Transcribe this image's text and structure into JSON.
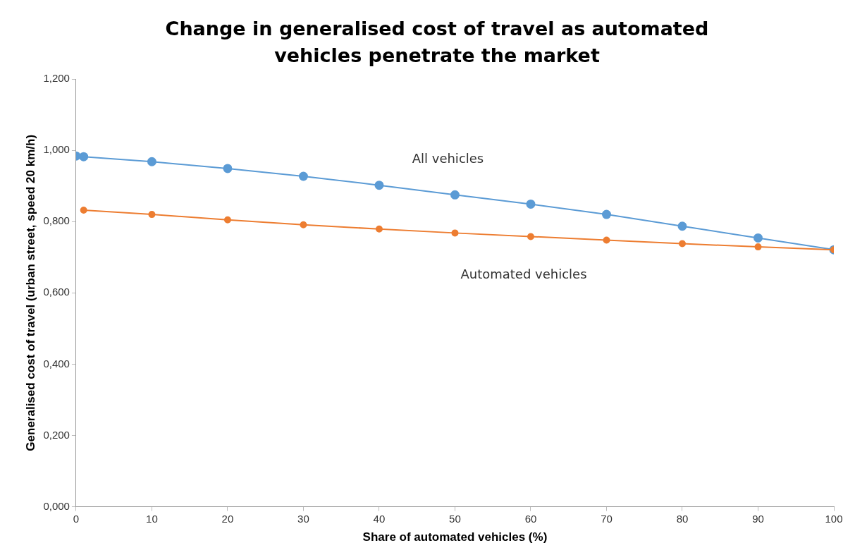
{
  "chart_data": {
    "type": "line",
    "title": "Change in generalised cost of travel as automated vehicles penetrate the market",
    "xlabel": "Share of automated vehicles (%)",
    "ylabel": "Generalised cost of travel (urban street, speed 20 km/h)",
    "xlim": [
      0,
      100
    ],
    "xticks": [
      0,
      10,
      20,
      30,
      40,
      50,
      60,
      70,
      80,
      90,
      100
    ],
    "ylim": [
      0,
      1.2
    ],
    "yticks": [
      {
        "value": 0,
        "label": "0,000"
      },
      {
        "value": 0.2,
        "label": "0,200"
      },
      {
        "value": 0.4,
        "label": "0,400"
      },
      {
        "value": 0.6,
        "label": "0,600"
      },
      {
        "value": 0.8,
        "label": "0,800"
      },
      {
        "value": 1.0,
        "label": "1,000"
      },
      {
        "value": 1.2,
        "label": "1,200"
      }
    ],
    "grid": false,
    "legend": false,
    "marker": "circle",
    "line_style": "solid",
    "series": [
      {
        "name": "All vehicles",
        "color": "#5b9bd5",
        "x": [
          0,
          1,
          10,
          20,
          30,
          40,
          50,
          60,
          70,
          80,
          90,
          100
        ],
        "values": [
          0.984,
          0.982,
          0.968,
          0.949,
          0.927,
          0.902,
          0.875,
          0.849,
          0.82,
          0.787,
          0.754,
          0.721
        ]
      },
      {
        "name": "Automated vehicles",
        "color": "#ed7d31",
        "x": [
          1,
          10,
          20,
          30,
          40,
          50,
          60,
          70,
          80,
          90,
          100
        ],
        "values": [
          0.832,
          0.82,
          0.805,
          0.791,
          0.779,
          0.768,
          0.758,
          0.748,
          0.738,
          0.729,
          0.721
        ]
      }
    ]
  }
}
